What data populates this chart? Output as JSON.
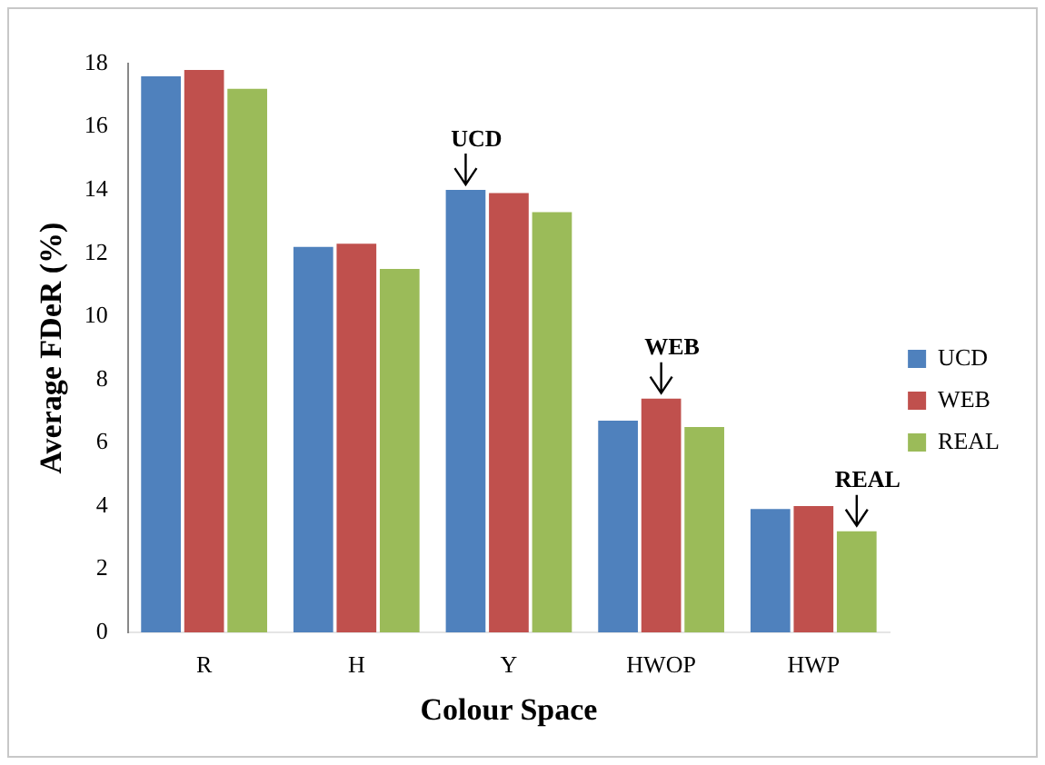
{
  "chart_data": {
    "type": "bar",
    "xlabel": "Colour Space",
    "ylabel": "Average FDeR (%)",
    "categories": [
      "R",
      "H",
      "Y",
      "HWOP",
      "HWP"
    ],
    "series": [
      {
        "name": "UCD",
        "color": "#4f81bd",
        "values": [
          17.6,
          12.2,
          14.0,
          6.7,
          3.9
        ]
      },
      {
        "name": "WEB",
        "color": "#c0504d",
        "values": [
          17.8,
          12.3,
          13.9,
          7.4,
          4.0
        ]
      },
      {
        "name": "REAL",
        "color": "#9bbb59",
        "values": [
          17.2,
          11.5,
          13.3,
          6.5,
          3.2
        ]
      }
    ],
    "ylim": [
      0,
      18
    ],
    "yticks": [
      0,
      2,
      4,
      6,
      8,
      10,
      12,
      14,
      16,
      18
    ],
    "grid": false,
    "legend": "right",
    "annotations": [
      {
        "text": "UCD",
        "x": "Y",
        "y": 14.0
      },
      {
        "text": "WEB",
        "x": "HWOP",
        "y": 7.4
      },
      "REAL"
    ]
  }
}
